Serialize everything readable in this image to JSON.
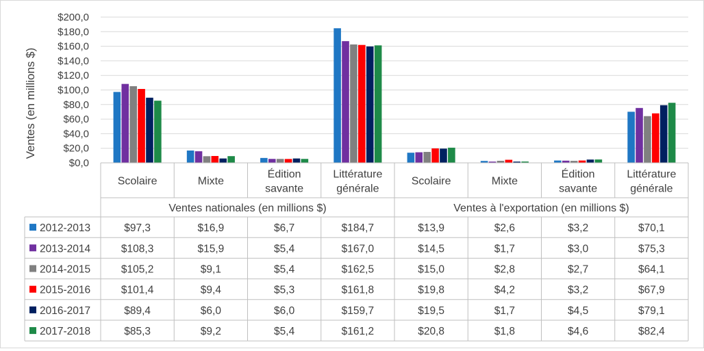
{
  "chart_data": {
    "type": "bar",
    "ylabel": "Ventes (en millions $)",
    "ylim": [
      0,
      200
    ],
    "y_ticks": [
      "$0,0",
      "$20,0",
      "$40,0",
      "$60,0",
      "$80,0",
      "$100,0",
      "$120,0",
      "$140,0",
      "$160,0",
      "$180,0",
      "$200,0"
    ],
    "grid": true,
    "legend": "data-table",
    "groups": [
      {
        "label": "Ventes nationales (en millions $)",
        "categories": [
          [
            "Scolaire"
          ],
          [
            "Mixte"
          ],
          [
            "Édition",
            "savante"
          ],
          [
            "Littérature",
            "générale"
          ]
        ]
      },
      {
        "label": "Ventes à l'exportation (en millions $)",
        "categories": [
          [
            "Scolaire"
          ],
          [
            "Mixte"
          ],
          [
            "Édition",
            "savante"
          ],
          [
            "Littérature",
            "générale"
          ]
        ]
      }
    ],
    "series": [
      {
        "name": "2012-2013",
        "color": "#1f77c4",
        "values": [
          97.3,
          16.9,
          6.7,
          184.7,
          13.9,
          2.6,
          3.2,
          70.1
        ],
        "labels": [
          "$97,3",
          "$16,9",
          "$6,7",
          "$184,7",
          "$13,9",
          "$2,6",
          "$3,2",
          "$70,1"
        ]
      },
      {
        "name": "2013-2014",
        "color": "#7030a0",
        "values": [
          108.3,
          15.9,
          5.4,
          167.0,
          14.5,
          1.7,
          3.0,
          75.3
        ],
        "labels": [
          "$108,3",
          "$15,9",
          "$5,4",
          "$167,0",
          "$14,5",
          "$1,7",
          "$3,0",
          "$75,3"
        ]
      },
      {
        "name": "2014-2015",
        "color": "#808080",
        "values": [
          105.2,
          9.1,
          5.4,
          162.5,
          15.0,
          2.8,
          2.7,
          64.1
        ],
        "labels": [
          "$105,2",
          "$9,1",
          "$5,4",
          "$162,5",
          "$15,0",
          "$2,8",
          "$2,7",
          "$64,1"
        ]
      },
      {
        "name": "2015-2016",
        "color": "#ff0000",
        "values": [
          101.4,
          9.4,
          5.3,
          161.8,
          19.8,
          4.2,
          3.2,
          67.9
        ],
        "labels": [
          "$101,4",
          "$9,4",
          "$5,3",
          "$161,8",
          "$19,8",
          "$4,2",
          "$3,2",
          "$67,9"
        ]
      },
      {
        "name": "2016-2017",
        "color": "#002060",
        "values": [
          89.4,
          6.0,
          6.0,
          159.7,
          19.5,
          1.7,
          4.5,
          79.1
        ],
        "labels": [
          "$89,4",
          "$6,0",
          "$6,0",
          "$159,7",
          "$19,5",
          "$1,7",
          "$4,5",
          "$79,1"
        ]
      },
      {
        "name": "2017-2018",
        "color": "#1e8a48",
        "values": [
          85.3,
          9.2,
          5.4,
          161.2,
          20.8,
          1.8,
          4.6,
          82.4
        ],
        "labels": [
          "$85,3",
          "$9,2",
          "$5,4",
          "$161,2",
          "$20,8",
          "$1,8",
          "$4,6",
          "$82,4"
        ]
      }
    ]
  }
}
